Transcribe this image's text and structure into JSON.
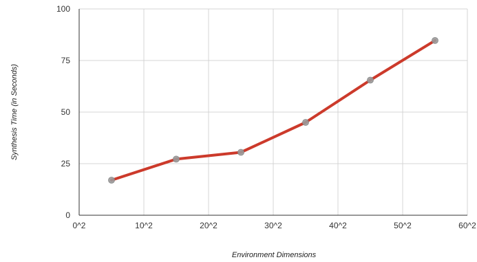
{
  "chart_data": {
    "type": "line",
    "title": "",
    "xlabel": "Environment Dimensions",
    "ylabel": "Synthesis Time (in Seconds)",
    "x_ticks": [
      "0^2",
      "10^2",
      "20^2",
      "30^2",
      "40^2",
      "50^2",
      "60^2"
    ],
    "xlim": [
      0,
      60
    ],
    "ylim": [
      0,
      100
    ],
    "y_ticks": [
      0,
      25,
      50,
      75,
      100
    ],
    "grid": true,
    "series": [
      {
        "name": "",
        "x": [
          5,
          15,
          25,
          35,
          45,
          55
        ],
        "y": [
          17,
          27.2,
          30.5,
          45,
          65.5,
          84.7
        ],
        "line_color": "#cc3a2b",
        "marker_color": "#9a9a9a"
      }
    ]
  }
}
